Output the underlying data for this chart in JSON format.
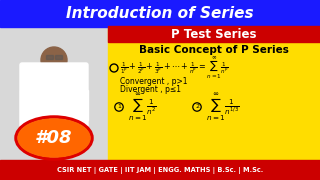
{
  "title_top": "Introduction of Series",
  "title_top_bg": "#1a1aff",
  "title_top_color": "#ffffff",
  "subtitle": "P Test Series",
  "subtitle_bg": "#cc0000",
  "subtitle_color": "#ffffff",
  "content_bg": "#ffdd00",
  "heading": "Basic Concept of P Series",
  "conv_text": "Convergent , p>1",
  "div_text": "Divergent , p≤1",
  "badge_text": "#08",
  "badge_bg": "#ff6600",
  "badge_border": "#dd0000",
  "footer_bg": "#cc0000",
  "footer_text": "CSIR NET | GATE | IIT JAM | ENGG. MATHS | B.Sc. | M.Sc.",
  "footer_color": "#ffffff",
  "left_bg": "#d8d8d8",
  "fig_width": 3.2,
  "fig_height": 1.8
}
